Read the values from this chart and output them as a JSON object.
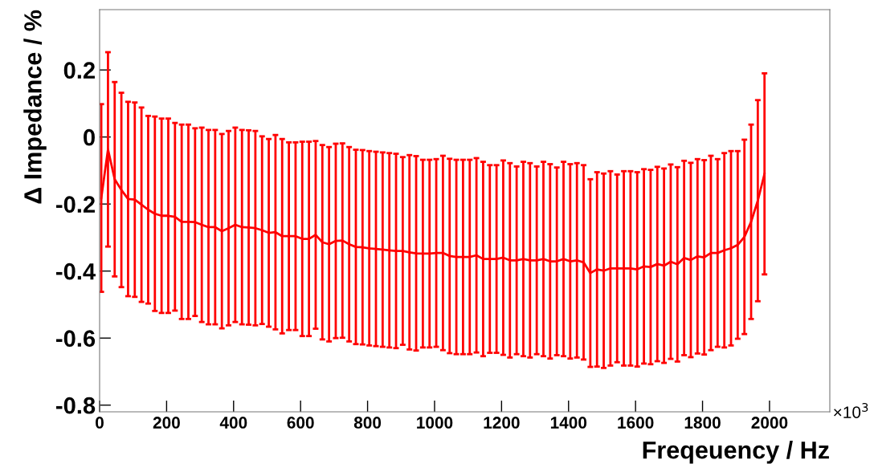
{
  "chart_data": {
    "type": "line",
    "xlabel": "Freqeuency / Hz",
    "ylabel": "Δ Impedance / %",
    "annotations": [
      "×10$^{3}$"
    ],
    "x": [
      5,
      25,
      45,
      65,
      85,
      105,
      125,
      145,
      165,
      185,
      205,
      225,
      245,
      265,
      285,
      305,
      325,
      345,
      365,
      385,
      405,
      425,
      445,
      465,
      485,
      505,
      525,
      545,
      565,
      585,
      605,
      625,
      645,
      665,
      685,
      705,
      725,
      745,
      765,
      785,
      805,
      825,
      845,
      865,
      885,
      905,
      925,
      945,
      965,
      985,
      1005,
      1025,
      1045,
      1065,
      1085,
      1105,
      1125,
      1145,
      1165,
      1185,
      1205,
      1225,
      1245,
      1265,
      1285,
      1305,
      1325,
      1345,
      1365,
      1385,
      1405,
      1425,
      1445,
      1465,
      1485,
      1505,
      1525,
      1545,
      1565,
      1585,
      1605,
      1625,
      1645,
      1665,
      1685,
      1705,
      1725,
      1745,
      1765,
      1785,
      1805,
      1825,
      1845,
      1865,
      1885,
      1905,
      1925,
      1945,
      1965,
      1985
    ],
    "series": [
      {
        "color": "#ff0000",
        "values": [
          -0.182,
          -0.037,
          -0.126,
          -0.158,
          -0.185,
          -0.187,
          -0.202,
          -0.217,
          -0.229,
          -0.235,
          -0.235,
          -0.238,
          -0.253,
          -0.253,
          -0.254,
          -0.262,
          -0.269,
          -0.269,
          -0.281,
          -0.272,
          -0.262,
          -0.269,
          -0.27,
          -0.272,
          -0.278,
          -0.286,
          -0.284,
          -0.296,
          -0.296,
          -0.296,
          -0.304,
          -0.304,
          -0.292,
          -0.314,
          -0.32,
          -0.31,
          -0.309,
          -0.32,
          -0.328,
          -0.329,
          -0.332,
          -0.334,
          -0.336,
          -0.338,
          -0.34,
          -0.34,
          -0.344,
          -0.347,
          -0.348,
          -0.348,
          -0.346,
          -0.346,
          -0.355,
          -0.358,
          -0.358,
          -0.358,
          -0.353,
          -0.364,
          -0.364,
          -0.364,
          -0.36,
          -0.368,
          -0.368,
          -0.364,
          -0.368,
          -0.368,
          -0.364,
          -0.371,
          -0.371,
          -0.364,
          -0.371,
          -0.368,
          -0.374,
          -0.406,
          -0.395,
          -0.399,
          -0.392,
          -0.392,
          -0.392,
          -0.392,
          -0.395,
          -0.386,
          -0.388,
          -0.379,
          -0.384,
          -0.372,
          -0.38,
          -0.361,
          -0.367,
          -0.356,
          -0.359,
          -0.346,
          -0.346,
          -0.338,
          -0.332,
          -0.322,
          -0.298,
          -0.253,
          -0.19,
          -0.11
        ],
        "errors": [
          0.28,
          0.29,
          0.29,
          0.29,
          0.29,
          0.29,
          0.29,
          0.28,
          0.29,
          0.29,
          0.29,
          0.28,
          0.29,
          0.29,
          0.28,
          0.29,
          0.29,
          0.29,
          0.29,
          0.29,
          0.29,
          0.29,
          0.29,
          0.29,
          0.28,
          0.28,
          0.29,
          0.29,
          0.28,
          0.28,
          0.29,
          0.29,
          0.28,
          0.29,
          0.29,
          0.29,
          0.29,
          0.29,
          0.29,
          0.29,
          0.29,
          0.29,
          0.29,
          0.29,
          0.29,
          0.28,
          0.29,
          0.29,
          0.28,
          0.28,
          0.28,
          0.29,
          0.29,
          0.29,
          0.29,
          0.29,
          0.29,
          0.29,
          0.28,
          0.28,
          0.29,
          0.29,
          0.28,
          0.29,
          0.29,
          0.28,
          0.29,
          0.29,
          0.28,
          0.29,
          0.29,
          0.29,
          0.29,
          0.28,
          0.29,
          0.29,
          0.29,
          0.28,
          0.29,
          0.29,
          0.29,
          0.29,
          0.29,
          0.29,
          0.29,
          0.29,
          0.29,
          0.29,
          0.29,
          0.29,
          0.29,
          0.29,
          0.28,
          0.29,
          0.29,
          0.28,
          0.29,
          0.29,
          0.3,
          0.3
        ]
      }
    ],
    "xlim": [
      0,
      2180
    ],
    "xticks": [
      0,
      200,
      400,
      600,
      800,
      1000,
      1200,
      1400,
      1600,
      1800,
      2000
    ],
    "ylim": [
      -0.82,
      0.38
    ],
    "yticks": [
      -0.8,
      -0.6,
      -0.4,
      -0.2,
      0,
      0.2
    ],
    "grid": false,
    "legend": false,
    "marker": "none",
    "line_style": "solid"
  }
}
